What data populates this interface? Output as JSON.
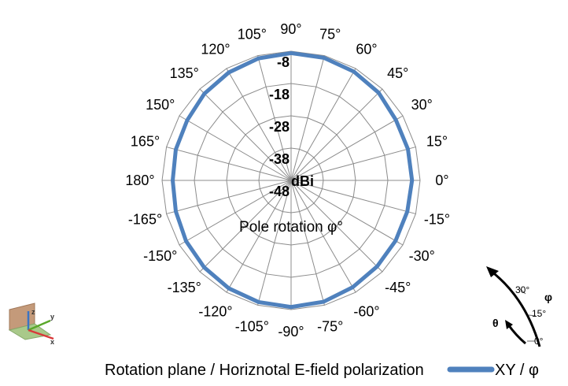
{
  "chart_data": {
    "type": "radar",
    "r_unit_label": "dBi",
    "r_ticks": [
      "-8",
      "-18",
      "-28",
      "-38",
      "-48"
    ],
    "r_range": [
      -48,
      -8
    ],
    "angle_labels": [
      "0°",
      "15°",
      "30°",
      "45°",
      "60°",
      "75°",
      "90°",
      "105°",
      "120°",
      "135°",
      "150°",
      "165°",
      "180°",
      "-165°",
      "-150°",
      "-135°",
      "-120°",
      "-105°",
      "-90°",
      "-75°",
      "-60°",
      "-45°",
      "-30°",
      "-15°"
    ],
    "angle_title": "Pole rotation φ°",
    "grid": true,
    "series": [
      {
        "name": "XY / φ",
        "color": "#4F81BD",
        "angles_deg": [
          0,
          15,
          30,
          45,
          60,
          75,
          90,
          105,
          120,
          135,
          150,
          165,
          180,
          -165,
          -150,
          -135,
          -120,
          -105,
          -90,
          -75,
          -60,
          -45,
          -30,
          -15
        ],
        "values": [
          -10.5,
          -10.5,
          -10.5,
          -9.6,
          -9.1,
          -8.7,
          -8.6,
          -8.9,
          -9.4,
          -10.0,
          -10.8,
          -11.0,
          -11.3,
          -11.0,
          -10.4,
          -9.9,
          -9.4,
          -9.0,
          -8.8,
          -9.1,
          -9.8,
          -10.3,
          -10.6,
          -10.7
        ]
      }
    ],
    "legend_position": "bottom-right",
    "caption": "Rotation plane / Horiznotal E-field polarization"
  },
  "orientation_inset": {
    "angle_labels": [
      "30°",
      "15°",
      "0°"
    ],
    "phi_symbol": "φ",
    "theta_symbol": "θ"
  },
  "icons": {
    "axes_icon": "xyz-axes-icon",
    "rotation_arrow": "curved-arrow-icon"
  }
}
